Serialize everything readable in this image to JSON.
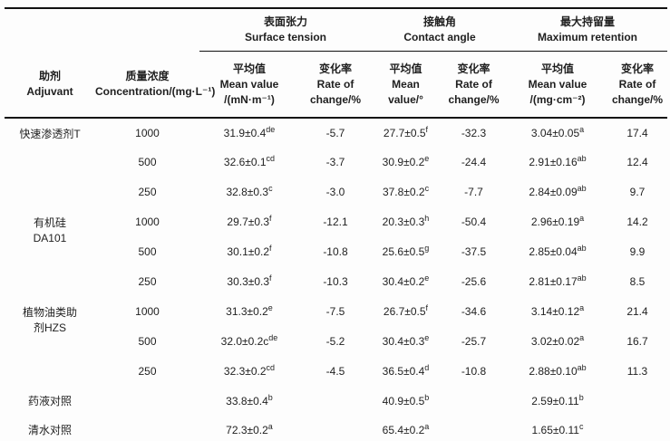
{
  "table": {
    "header": {
      "adjuvant": {
        "zh": "助剂",
        "en": "Adjuvant"
      },
      "concentration": {
        "zh": "质量浓度",
        "en": "Concentration/(mg·L⁻¹)"
      },
      "groups": [
        {
          "zh": "表面张力",
          "en": "Surface tension"
        },
        {
          "zh": "接触角",
          "en": "Contact angle"
        },
        {
          "zh": "最大持留量",
          "en": "Maximum retention"
        }
      ],
      "subcols": [
        {
          "zh": "平均值",
          "en": "Mean value",
          "unit": "/(mN·m⁻¹)"
        },
        {
          "zh": "变化率",
          "en": "Rate of",
          "unit": "change/%"
        },
        {
          "zh": "平均值",
          "en": "Mean",
          "unit": "value/°"
        },
        {
          "zh": "变化率",
          "en": "Rate of",
          "unit": "change/%"
        },
        {
          "zh": "平均值",
          "en": "Mean value",
          "unit": "/(mg·cm⁻²)"
        },
        {
          "zh": "变化率",
          "en": "Rate of",
          "unit": "change/%"
        }
      ]
    },
    "rows": [
      {
        "adjuvant": "快速渗透剂T",
        "conc": "1000",
        "st_mean": {
          "v": "31.9±0.4",
          "sup": "de"
        },
        "st_rate": "-5.7",
        "ca_mean": {
          "v": "27.7±0.5",
          "sup": "f"
        },
        "ca_rate": "-32.3",
        "mr_mean": {
          "v": "3.04±0.05",
          "sup": "a"
        },
        "mr_rate": "17.4"
      },
      {
        "conc": "500",
        "st_mean": {
          "v": "32.6±0.1",
          "sup": "cd"
        },
        "st_rate": "-3.7",
        "ca_mean": {
          "v": "30.9±0.2",
          "sup": "e"
        },
        "ca_rate": "-24.4",
        "mr_mean": {
          "v": "2.91±0.16",
          "sup": "ab"
        },
        "mr_rate": "12.4"
      },
      {
        "conc": "250",
        "st_mean": {
          "v": "32.8±0.3",
          "sup": "c"
        },
        "st_rate": "-3.0",
        "ca_mean": {
          "v": "37.8±0.2",
          "sup": "c"
        },
        "ca_rate": "-7.7",
        "mr_mean": {
          "v": "2.84±0.09",
          "sup": "ab"
        },
        "mr_rate": "9.7"
      },
      {
        "adjuvant": "有机硅DA101",
        "conc": "1000",
        "st_mean": {
          "v": "29.7±0.3",
          "sup": "f"
        },
        "st_rate": "-12.1",
        "ca_mean": {
          "v": "20.3±0.3",
          "sup": "h"
        },
        "ca_rate": "-50.4",
        "mr_mean": {
          "v": "2.96±0.19",
          "sup": "a"
        },
        "mr_rate": "14.2"
      },
      {
        "conc": "500",
        "st_mean": {
          "v": "30.1±0.2",
          "sup": "f"
        },
        "st_rate": "-10.8",
        "ca_mean": {
          "v": "25.6±0.5",
          "sup": "g"
        },
        "ca_rate": "-37.5",
        "mr_mean": {
          "v": "2.85±0.04",
          "sup": "ab"
        },
        "mr_rate": "9.9"
      },
      {
        "conc": "250",
        "st_mean": {
          "v": "30.3±0.3",
          "sup": "f"
        },
        "st_rate": "-10.3",
        "ca_mean": {
          "v": "30.4±0.2",
          "sup": "e"
        },
        "ca_rate": "-25.6",
        "mr_mean": {
          "v": "2.81±0.17",
          "sup": "ab"
        },
        "mr_rate": "8.5"
      },
      {
        "adjuvant": "植物油类助剂HZS",
        "conc": "1000",
        "st_mean": {
          "v": "31.3±0.2",
          "sup": "e"
        },
        "st_rate": "-7.5",
        "ca_mean": {
          "v": "26.7±0.5",
          "sup": "f"
        },
        "ca_rate": "-34.6",
        "mr_mean": {
          "v": "3.14±0.12",
          "sup": "a"
        },
        "mr_rate": "21.4"
      },
      {
        "conc": "500",
        "st_mean": {
          "v": "32.0±0.2c",
          "sup": "de"
        },
        "st_rate": "-5.2",
        "ca_mean": {
          "v": "30.4±0.3",
          "sup": "e"
        },
        "ca_rate": "-25.7",
        "mr_mean": {
          "v": "3.02±0.02",
          "sup": "a"
        },
        "mr_rate": "16.7"
      },
      {
        "conc": "250",
        "st_mean": {
          "v": "32.3±0.2",
          "sup": "cd"
        },
        "st_rate": "-4.5",
        "ca_mean": {
          "v": "36.5±0.4",
          "sup": "d"
        },
        "ca_rate": "-10.8",
        "mr_mean": {
          "v": "2.88±0.10",
          "sup": "ab"
        },
        "mr_rate": "11.3"
      },
      {
        "adjuvant": "药液对照",
        "conc": "",
        "st_mean": {
          "v": "33.8±0.4",
          "sup": "b"
        },
        "st_rate": "",
        "ca_mean": {
          "v": "40.9±0.5",
          "sup": "b"
        },
        "ca_rate": "",
        "mr_mean": {
          "v": "2.59±0.11",
          "sup": "b"
        },
        "mr_rate": ""
      },
      {
        "adjuvant": "清水对照",
        "conc": "",
        "st_mean": {
          "v": "72.3±0.2",
          "sup": "a"
        },
        "st_rate": "",
        "ca_mean": {
          "v": "65.4±0.2",
          "sup": "a"
        },
        "ca_rate": "",
        "mr_mean": {
          "v": "1.65±0.11",
          "sup": "c"
        },
        "mr_rate": ""
      }
    ]
  }
}
